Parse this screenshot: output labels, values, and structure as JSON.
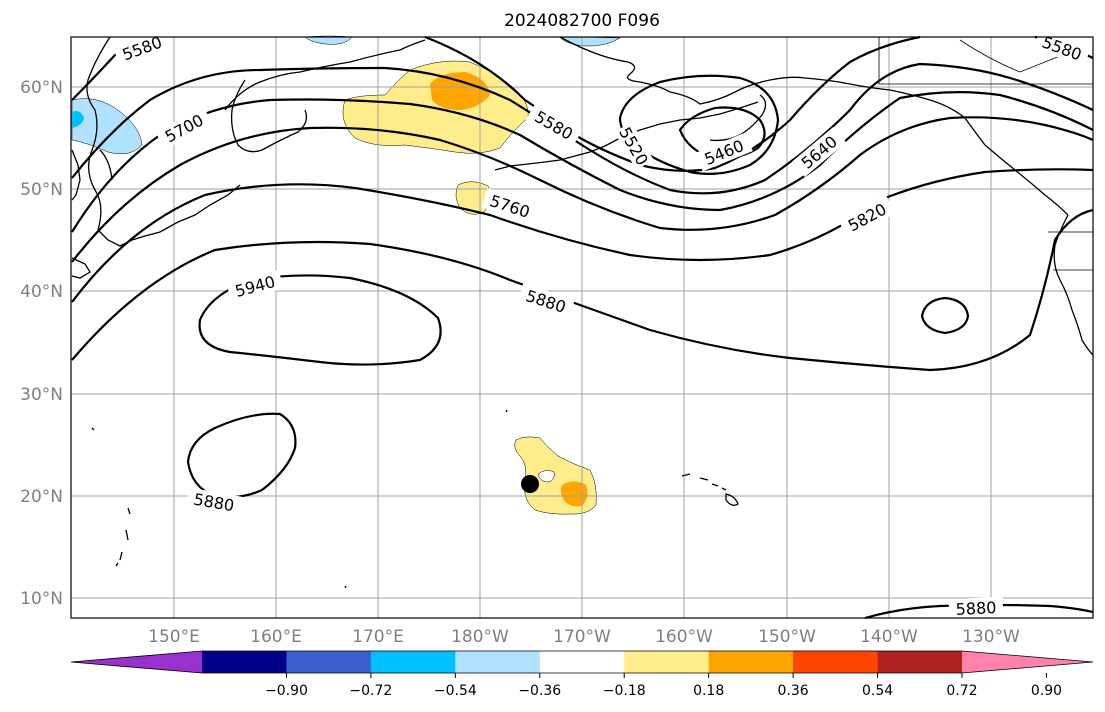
{
  "title": "2024082700 F096",
  "latitude_labels": [
    "60°N",
    "50°N",
    "40°N",
    "30°N",
    "20°N",
    "10°N"
  ],
  "longitude_labels": [
    "150°E",
    "160°E",
    "170°E",
    "180°W",
    "170°W",
    "160°W",
    "150°W",
    "140°W",
    "130°W"
  ],
  "contours": {
    "color": "#000000",
    "labels": [
      "5580",
      "5700",
      "5580",
      "5520",
      "5460",
      "5640",
      "5580",
      "5760",
      "5820",
      "5940",
      "5880",
      "5880",
      "5880"
    ]
  },
  "colorbar": {
    "ticks": [
      "−0.90",
      "−0.72",
      "−0.54",
      "−0.36",
      "−0.18",
      "0.18",
      "0.36",
      "0.54",
      "0.72",
      "0.90"
    ],
    "colors": [
      "#9932cc",
      "#00008b",
      "#3a5fcd",
      "#00bfff",
      "#b0e2ff",
      "#ffffff",
      "#ffec8b",
      "#ffa500",
      "#ff4500",
      "#b22222",
      "#ff82ab"
    ]
  },
  "shading_colors": {
    "light_yellow": "#ffec8b",
    "orange": "#ffa500",
    "light_blue": "#b0e2ff",
    "deep_sky_blue": "#00bfff"
  },
  "marker": {
    "color": "#000000"
  }
}
